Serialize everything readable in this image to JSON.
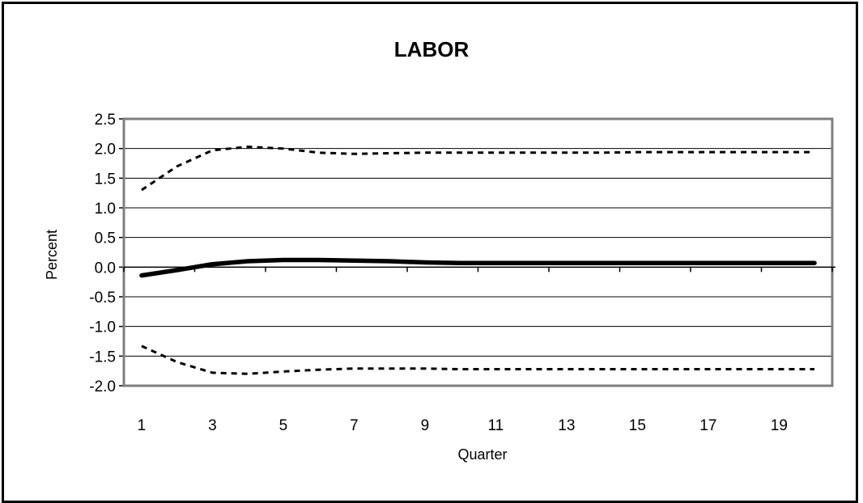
{
  "chart_data": {
    "type": "line",
    "title": "LABOR",
    "xlabel": "Quarter",
    "ylabel": "Percent",
    "ylim": [
      -2.0,
      2.5
    ],
    "xlim": [
      0.5,
      20.5
    ],
    "yticks": [
      "2.5",
      "2.0",
      "1.5",
      "1.0",
      "0.5",
      "0.0",
      "-0.5",
      "-1.0",
      "-1.5",
      "-2.0"
    ],
    "ytick_values": [
      2.5,
      2.0,
      1.5,
      1.0,
      0.5,
      0.0,
      -0.5,
      -1.0,
      -1.5,
      -2.0
    ],
    "xticks": [
      "1",
      "3",
      "5",
      "7",
      "9",
      "11",
      "13",
      "15",
      "17",
      "19"
    ],
    "xtick_values": [
      1,
      3,
      5,
      7,
      9,
      11,
      13,
      15,
      17,
      19
    ],
    "grid": true,
    "legend": "none",
    "x": [
      1,
      2,
      3,
      4,
      5,
      6,
      7,
      8,
      9,
      10,
      11,
      12,
      13,
      14,
      15,
      16,
      17,
      18,
      19,
      20
    ],
    "series": [
      {
        "role": "upper",
        "style": "dashed",
        "values": [
          1.3,
          1.7,
          1.97,
          2.03,
          2.0,
          1.93,
          1.91,
          1.92,
          1.93,
          1.93,
          1.93,
          1.93,
          1.93,
          1.93,
          1.94,
          1.94,
          1.94,
          1.94,
          1.94,
          1.94
        ]
      },
      {
        "role": "center",
        "style": "solid",
        "values": [
          -0.14,
          -0.05,
          0.05,
          0.1,
          0.12,
          0.12,
          0.11,
          0.1,
          0.08,
          0.07,
          0.07,
          0.07,
          0.07,
          0.07,
          0.07,
          0.07,
          0.07,
          0.07,
          0.07,
          0.07
        ]
      },
      {
        "role": "lower",
        "style": "dashed",
        "values": [
          -1.33,
          -1.6,
          -1.78,
          -1.8,
          -1.76,
          -1.73,
          -1.71,
          -1.71,
          -1.71,
          -1.72,
          -1.72,
          -1.72,
          -1.72,
          -1.72,
          -1.72,
          -1.72,
          -1.72,
          -1.72,
          -1.72,
          -1.72
        ]
      }
    ],
    "colors": {
      "line": "#000000",
      "grid": "#000000",
      "plot_border": "#7f7f7f"
    }
  }
}
